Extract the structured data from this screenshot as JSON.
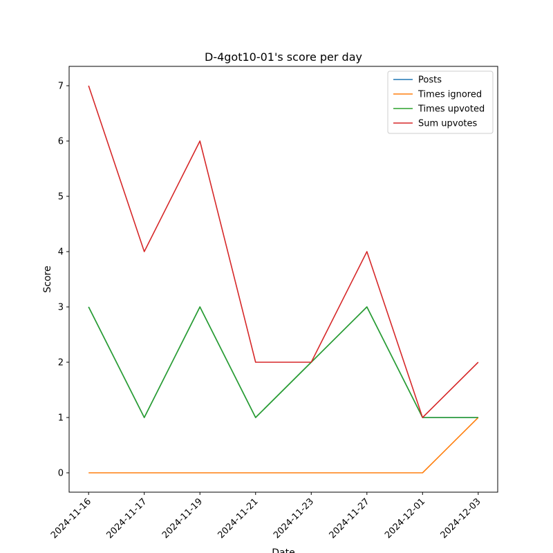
{
  "chart_data": {
    "type": "line",
    "title": "D-4got10-01's score per day",
    "xlabel": "Date",
    "ylabel": "Score",
    "categories": [
      "2024-11-16",
      "2024-11-17",
      "2024-11-19",
      "2024-11-21",
      "2024-11-23",
      "2024-11-27",
      "2024-12-01",
      "2024-12-03"
    ],
    "ylim": [
      -0.35,
      7.35
    ],
    "yticks": [
      0,
      1,
      2,
      3,
      4,
      5,
      6,
      7
    ],
    "grid": false,
    "legend_position": "top-right",
    "series": [
      {
        "name": "Posts",
        "color": "#1f77b4",
        "values": [
          3,
          1,
          3,
          1,
          2,
          3,
          1,
          1
        ]
      },
      {
        "name": "Times ignored",
        "color": "#ff7f0e",
        "values": [
          0,
          0,
          0,
          0,
          0,
          0,
          0,
          1
        ]
      },
      {
        "name": "Times upvoted",
        "color": "#2ca02c",
        "values": [
          3,
          1,
          3,
          1,
          2,
          3,
          1,
          1
        ]
      },
      {
        "name": "Sum upvotes",
        "color": "#d62728",
        "values": [
          7,
          4,
          6,
          2,
          2,
          4,
          1,
          2
        ]
      }
    ]
  }
}
